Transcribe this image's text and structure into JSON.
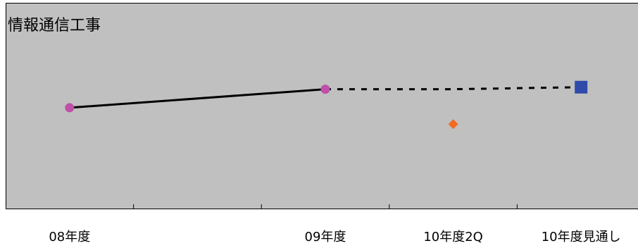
{
  "chart_data": {
    "type": "line",
    "title": "情報通信工事",
    "xlabel": "",
    "ylabel": "",
    "categories": [
      "08年度",
      "",
      "09年度",
      "10年度2Q",
      "10年度見通し"
    ],
    "x_slots": 5,
    "ylim": [
      0,
      100
    ],
    "grid": false,
    "background": "#C0C0C0",
    "series": [
      {
        "kind": "actual",
        "style": "solid",
        "color": "#000000",
        "marker": "circle",
        "marker_color": "#BF4FA8",
        "points": [
          {
            "x": "08年度",
            "y": 49
          },
          {
            "x": "09年度",
            "y": 58
          }
        ]
      },
      {
        "kind": "forecast",
        "style": "dashed",
        "color": "#000000",
        "points": [
          {
            "x": "09年度",
            "y": 58
          },
          {
            "x": "10年度2Q",
            "y": 58
          },
          {
            "x": "10年度見通し",
            "y": 59
          }
        ]
      },
      {
        "kind": "single",
        "marker": "diamond",
        "marker_color": "#F26B21",
        "points": [
          {
            "x": "10年度2Q",
            "y": 41
          }
        ]
      },
      {
        "kind": "single",
        "marker": "square",
        "marker_color": "#2E4BAA",
        "points": [
          {
            "x": "10年度見通し",
            "y": 59
          }
        ]
      }
    ]
  }
}
